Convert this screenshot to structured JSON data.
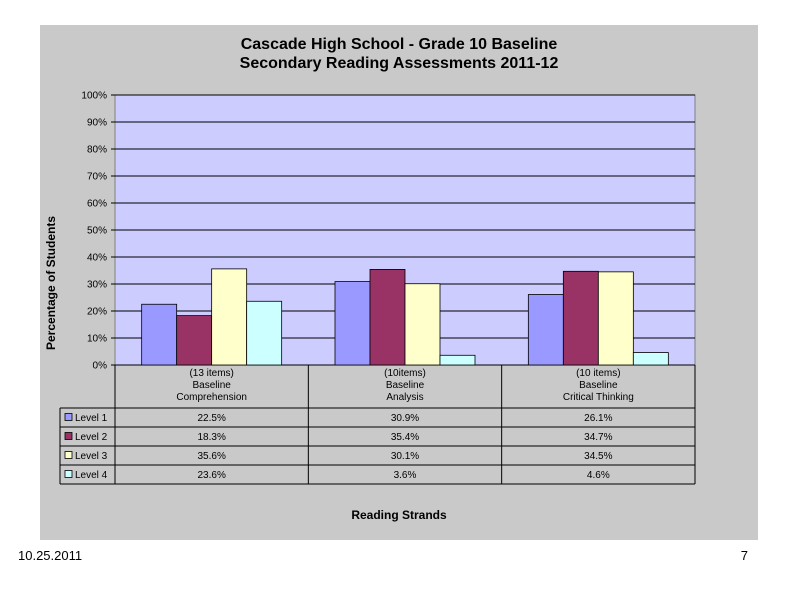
{
  "slide": {
    "date": "10.25.2011",
    "page_number": "7"
  },
  "chart_data": {
    "type": "bar",
    "title": [
      "Cascade High School - Grade 10 Baseline",
      "Secondary Reading Assessments 2011-12"
    ],
    "xlabel": "Reading Strands",
    "ylabel": "Percentage of Students",
    "ylim": [
      0,
      100
    ],
    "y_ticks": [
      "0%",
      "10%",
      "20%",
      "30%",
      "40%",
      "50%",
      "60%",
      "70%",
      "80%",
      "90%",
      "100%"
    ],
    "grid": true,
    "data_table": true,
    "categories": [
      [
        "(13 items)",
        "Baseline",
        "Comprehension"
      ],
      [
        "(10items)",
        "Baseline",
        "Analysis"
      ],
      [
        "(10 items)",
        "Baseline",
        "Critical Thinking"
      ]
    ],
    "series": [
      {
        "name": "Level 1",
        "color": "#9999ff",
        "values": [
          22.5,
          30.9,
          26.1
        ],
        "labels": [
          "22.5%",
          "30.9%",
          "26.1%"
        ]
      },
      {
        "name": "Level 2",
        "color": "#993366",
        "values": [
          18.3,
          35.4,
          34.7
        ],
        "labels": [
          "18.3%",
          "35.4%",
          "34.7%"
        ]
      },
      {
        "name": "Level 3",
        "color": "#ffffcc",
        "values": [
          35.6,
          30.1,
          34.5
        ],
        "labels": [
          "35.6%",
          "30.1%",
          "34.5%"
        ]
      },
      {
        "name": "Level 4",
        "color": "#ccffff",
        "values": [
          23.6,
          3.6,
          4.6
        ],
        "labels": [
          "23.6%",
          "3.6%",
          "4.6%"
        ]
      }
    ],
    "colors": {
      "plot_background": "#ccccff",
      "panel_background": "#c9c9c9"
    }
  }
}
